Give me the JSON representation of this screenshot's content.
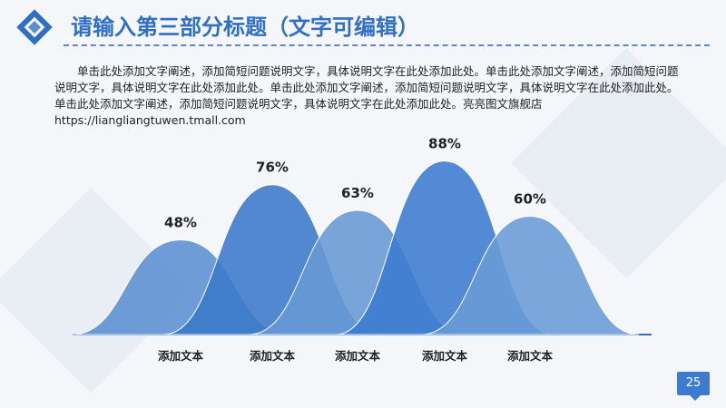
{
  "header": {
    "title": "请输入第三部分标题（文字可编辑）"
  },
  "description": "单击此处添加文字阐述，添加简短问题说明文字，具体说明文字在此处添加此处。单击此处添加文字阐述，添加简短问题说明文字，具体说明文字在此处添加此处。单击此处添加文字阐述，添加简短问题说明文字，具体说明文字在此处添加此处。单击此处添加文字阐述，添加简短问题说明文字，具体说明文字在此处添加此处。亮亮图文旗舰店https://liangliangtuwen.tmall.com",
  "page_number": "25",
  "colors": {
    "accent": "#3d7bd0",
    "light": "#5b8fd0",
    "dark": "#3a79c9"
  },
  "chart_data": {
    "type": "area",
    "categories": [
      "添加文本",
      "添加文本",
      "添加文本",
      "添加文本",
      "添加文本"
    ],
    "values": [
      48,
      76,
      63,
      88,
      60
    ],
    "value_labels": [
      "48%",
      "76%",
      "63%",
      "88%",
      "60%"
    ],
    "ylim": [
      0,
      100
    ],
    "grid": false,
    "legend": "none"
  }
}
